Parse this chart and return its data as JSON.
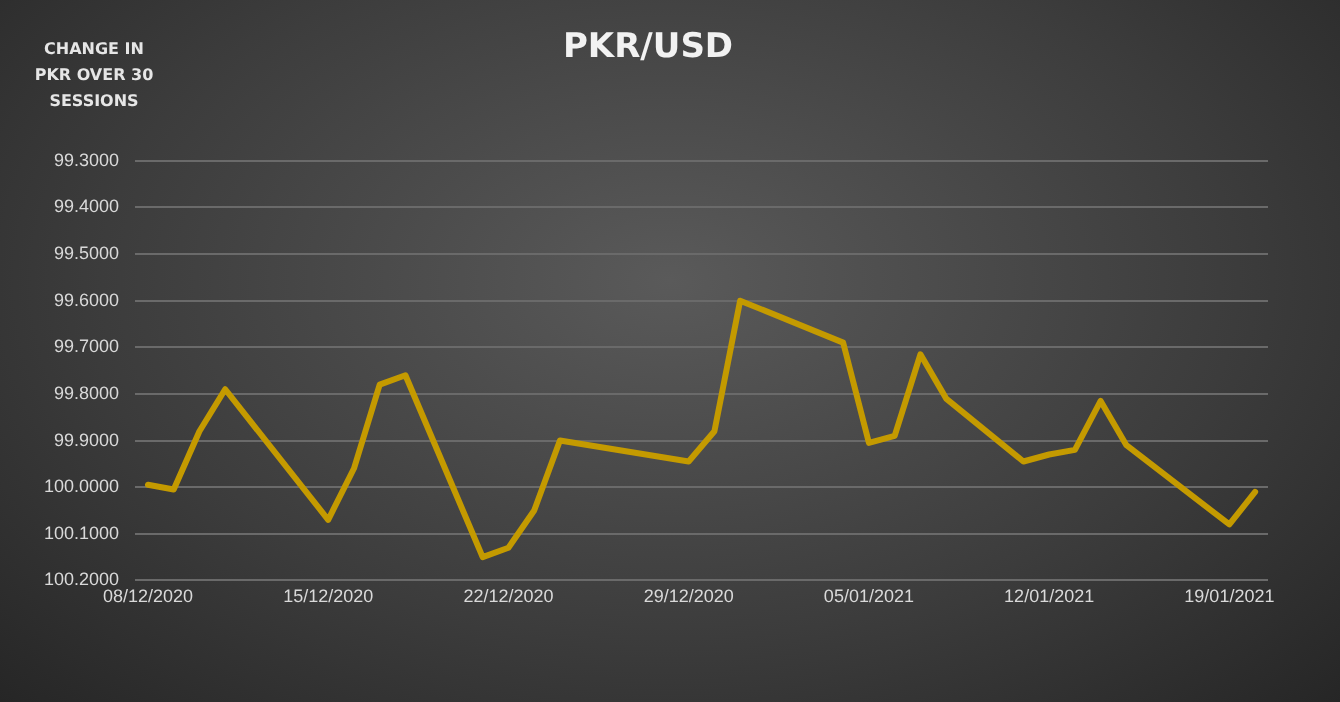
{
  "chart_data": {
    "type": "line",
    "title": "PKR/USD",
    "ylabel": "CHANGE IN PKR OVER 30 SESSIONS",
    "x": [
      "2020-12-08",
      "2020-12-09",
      "2020-12-10",
      "2020-12-11",
      "2020-12-15",
      "2020-12-16",
      "2020-12-17",
      "2020-12-18",
      "2020-12-21",
      "2020-12-22",
      "2020-12-23",
      "2020-12-24",
      "2020-12-29",
      "2020-12-30",
      "2020-12-31",
      "2021-01-04",
      "2021-01-05",
      "2021-01-06",
      "2021-01-07",
      "2021-01-08",
      "2021-01-11",
      "2021-01-12",
      "2021-01-13",
      "2021-01-14",
      "2021-01-15",
      "2021-01-19",
      "2021-01-20"
    ],
    "series": [
      {
        "color": "#c49a00",
        "values": [
          99.995,
          100.005,
          99.88,
          99.79,
          100.07,
          99.96,
          99.78,
          99.76,
          100.15,
          100.13,
          100.05,
          99.9,
          99.945,
          99.88,
          99.6,
          99.69,
          99.905,
          99.89,
          99.715,
          99.81,
          99.945,
          99.93,
          99.92,
          99.815,
          99.91,
          100.08,
          100.01
        ]
      }
    ],
    "xlim": [
      "2020-12-07T12:00",
      "2021-01-20T12:00"
    ],
    "xticks": [
      {
        "value": "2020-12-08",
        "label": "08/12/2020"
      },
      {
        "value": "2020-12-15",
        "label": "15/12/2020"
      },
      {
        "value": "2020-12-22",
        "label": "22/12/2020"
      },
      {
        "value": "2020-12-29",
        "label": "29/12/2020"
      },
      {
        "value": "2021-01-05",
        "label": "05/01/2021"
      },
      {
        "value": "2021-01-12",
        "label": "12/01/2021"
      },
      {
        "value": "2021-01-19",
        "label": "19/01/2021"
      }
    ],
    "ylim": [
      100.2,
      99.3
    ],
    "yticks": [
      {
        "value": 99.3,
        "label": "99.3000"
      },
      {
        "value": 99.4,
        "label": "99.4000"
      },
      {
        "value": 99.5,
        "label": "99.5000"
      },
      {
        "value": 99.6,
        "label": "99.6000"
      },
      {
        "value": 99.7,
        "label": "99.7000"
      },
      {
        "value": 99.8,
        "label": "99.8000"
      },
      {
        "value": 99.9,
        "label": "99.9000"
      },
      {
        "value": 100.0,
        "label": "100.0000"
      },
      {
        "value": 100.1,
        "label": "100.1000"
      },
      {
        "value": 100.2,
        "label": "100.2000"
      }
    ],
    "grid": "y",
    "legend": false,
    "marker": "none",
    "line_style": "solid"
  }
}
